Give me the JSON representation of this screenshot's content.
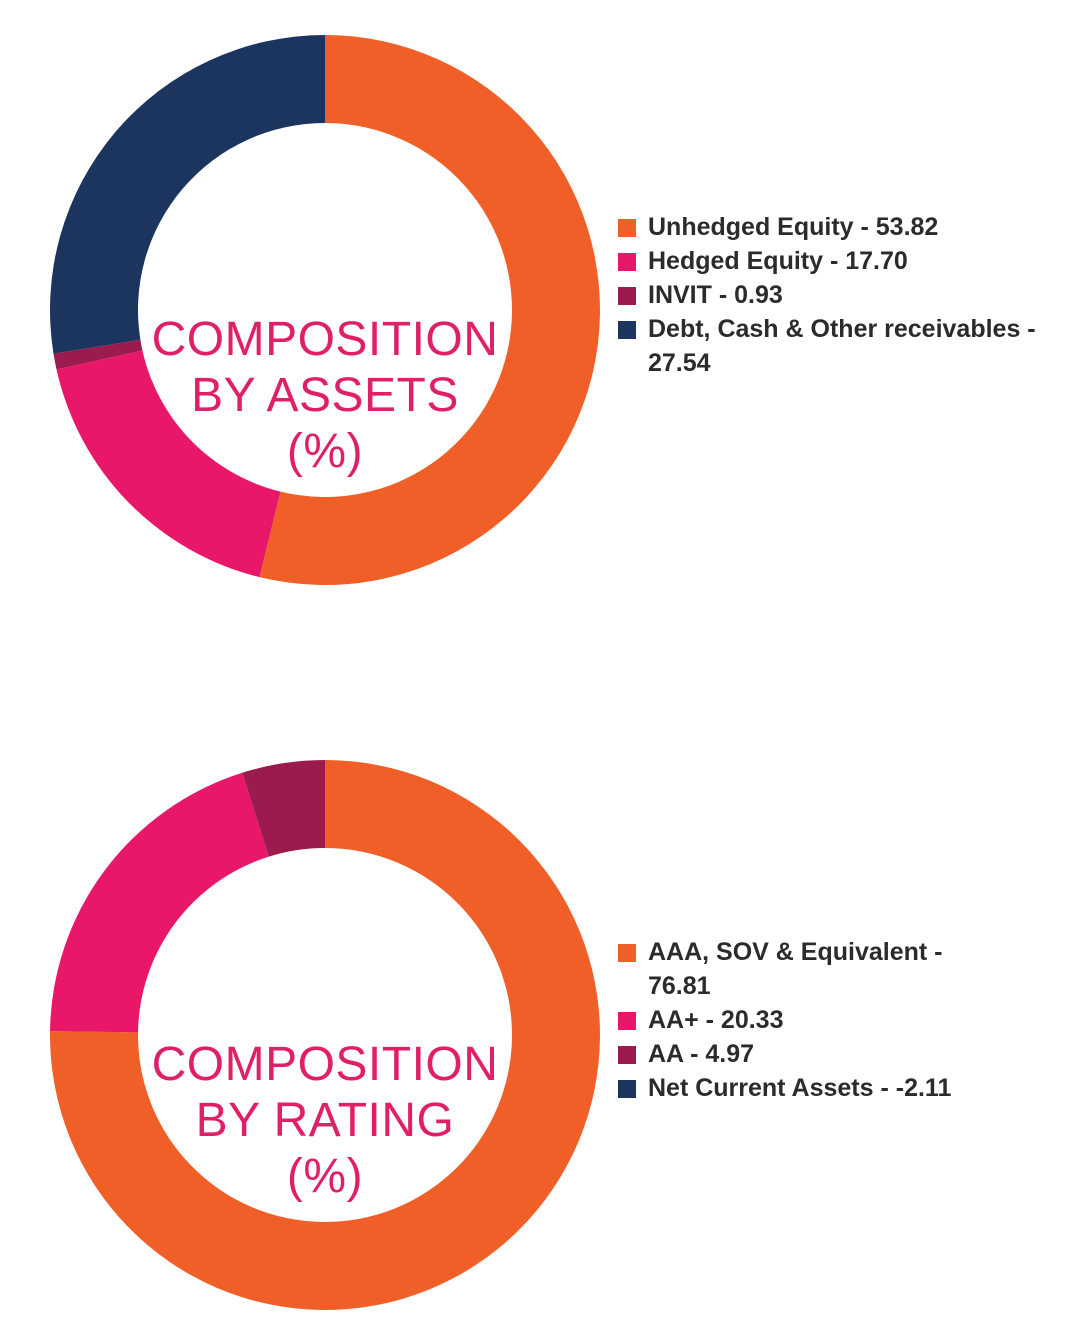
{
  "colors": {
    "orange": "#F05F28",
    "pink": "#E8176A",
    "maroon": "#9B1B4E",
    "navy": "#1B355F",
    "center_text": "#E01F69"
  },
  "chart_data": [
    {
      "type": "pie",
      "variant": "donut",
      "title": "COMPOSITION BY ASSETS (%)",
      "title_lines": [
        "COMPOSITION",
        "BY ASSETS",
        "(%)"
      ],
      "legend_position": "right",
      "slices": [
        {
          "label": "Unhedged Equity",
          "value": 53.82,
          "legend_text": "Unhedged Equity - 53.82",
          "color": "#F05F28"
        },
        {
          "label": "Hedged Equity",
          "value": 17.7,
          "legend_text": "Hedged Equity - 17.70",
          "color": "#E8176A"
        },
        {
          "label": "INVIT",
          "value": 0.93,
          "legend_text": "INVIT - 0.93",
          "color": "#9B1B4E"
        },
        {
          "label": "Debt, Cash & Other receivables",
          "value": 27.54,
          "legend_text": "Debt, Cash & Other receivables - 27.54",
          "color": "#1B355F"
        }
      ]
    },
    {
      "type": "pie",
      "variant": "donut",
      "title": "COMPOSITION BY RATING (%)",
      "title_lines": [
        "COMPOSITION",
        "BY RATING",
        "(%)"
      ],
      "legend_position": "right",
      "slices": [
        {
          "label": "AAA, SOV & Equivalent",
          "value": 76.81,
          "legend_text": "AAA, SOV & Equivalent - 76.81",
          "color": "#F05F28"
        },
        {
          "label": "AA+",
          "value": 20.33,
          "legend_text": "AA+ - 20.33",
          "color": "#E8176A"
        },
        {
          "label": "AA",
          "value": 4.97,
          "legend_text": "AA - 4.97",
          "color": "#9B1B4E"
        },
        {
          "label": "Net Current Assets",
          "value": -2.11,
          "legend_text": "Net Current Assets - -2.11",
          "color": "#1B355F"
        }
      ]
    }
  ]
}
